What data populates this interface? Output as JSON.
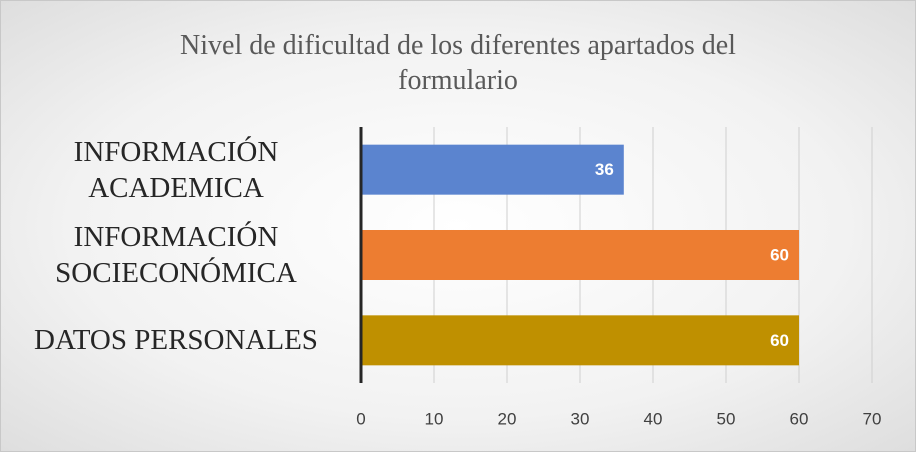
{
  "chart_data": {
    "type": "bar",
    "orientation": "horizontal",
    "title": "Nivel de dificultad de los diferentes apartados del formulario",
    "categories": [
      "INFORMACIÓN ACADEMICA",
      "INFORMACIÓN SOCIECONÓMICA",
      "DATOS PERSONALES"
    ],
    "values": [
      36,
      60,
      60
    ],
    "colors": [
      "#5b84cf",
      "#ed7d31",
      "#bf9000"
    ],
    "xlim": [
      0,
      70
    ],
    "xticks": [
      0,
      10,
      20,
      30,
      40,
      50,
      60,
      70
    ],
    "grid": true
  }
}
